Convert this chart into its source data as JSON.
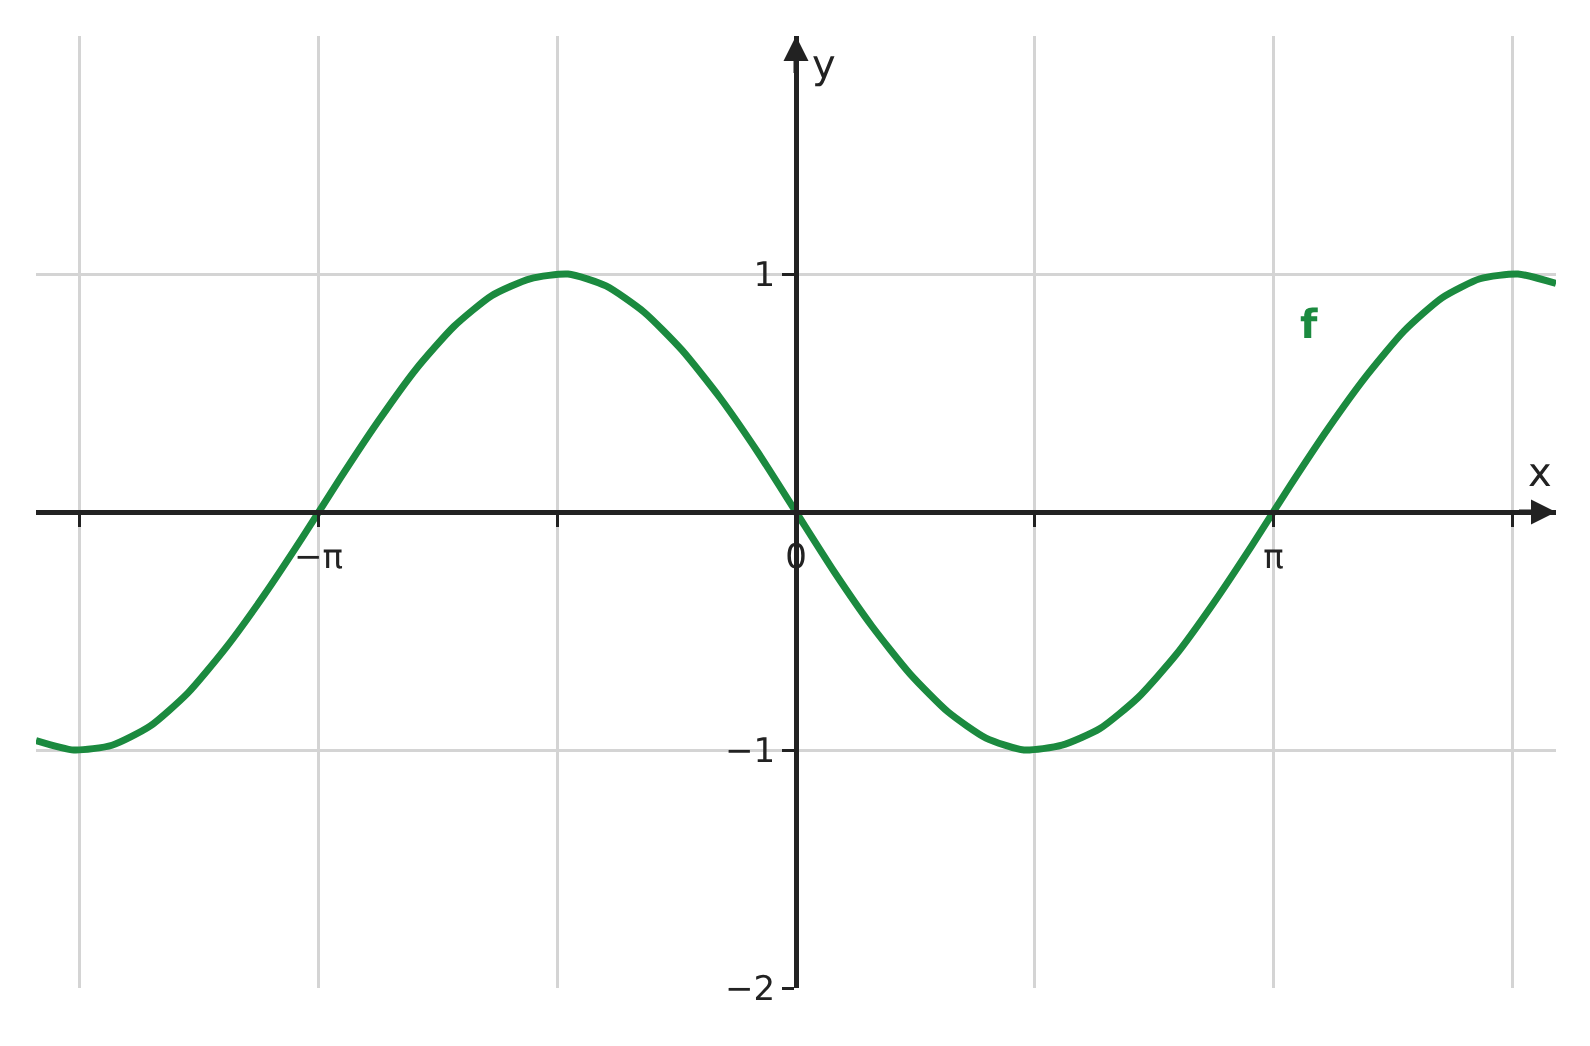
{
  "chart_data": {
    "type": "line",
    "xlabel": "x",
    "ylabel": "y",
    "xlim": [
      -5,
      5
    ],
    "ylim": [
      -2,
      2
    ],
    "xticks": [
      {
        "value": -4.712,
        "label": null
      },
      {
        "value": -3.1416,
        "label": "−π"
      },
      {
        "value": -1.5708,
        "label": null
      },
      {
        "value": 0,
        "label": "0"
      },
      {
        "value": 1.5708,
        "label": null
      },
      {
        "value": 3.1416,
        "label": "π"
      },
      {
        "value": 4.712,
        "label": null
      }
    ],
    "yticks": [
      -2,
      -1,
      1
    ],
    "grid": true,
    "legend": false,
    "marker": "none",
    "line_style": "solid",
    "x": [
      -5,
      -4.75,
      -4.5,
      -4.25,
      -4,
      -3.75,
      -3.5,
      -3.25,
      -3,
      -2.75,
      -2.5,
      -2.25,
      -2,
      -1.75,
      -1.5,
      -1.25,
      -1,
      -0.75,
      -0.5,
      -0.25,
      0,
      0.25,
      0.5,
      0.75,
      1,
      1.25,
      1.5,
      1.75,
      2,
      2.25,
      2.5,
      2.75,
      3,
      3.25,
      3.5,
      3.75,
      4,
      4.25,
      4.5,
      4.75,
      5
    ],
    "series": [
      {
        "name": "f",
        "color": "#1b8a3f",
        "values": [
          -0.96,
          -1.0,
          -0.98,
          -0.9,
          -0.76,
          -0.57,
          -0.35,
          -0.11,
          0.14,
          0.38,
          0.6,
          0.78,
          0.91,
          0.98,
          1.0,
          0.95,
          0.84,
          0.68,
          0.48,
          0.25,
          0,
          -0.25,
          -0.48,
          -0.68,
          -0.84,
          -0.95,
          -1.0,
          -0.98,
          -0.91,
          -0.78,
          -0.6,
          -0.38,
          -0.14,
          0.11,
          0.35,
          0.57,
          0.76,
          0.9,
          0.98,
          1.0,
          0.96
        ]
      }
    ]
  }
}
